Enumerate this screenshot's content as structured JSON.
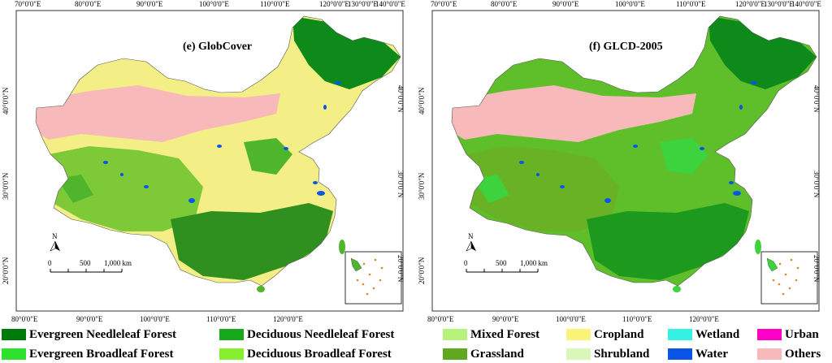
{
  "panels": [
    {
      "id": "e",
      "title": "(e) GlobCover",
      "top_lon_labels": [
        "70°0'0\"E",
        "80°0'0\"E",
        "90°0'0\"E",
        "100°0'0\"E",
        "110°0'0\"E",
        "120°0'0\"E",
        "130°0'0\"E",
        "140°0'0\"E"
      ],
      "bottom_lon_labels": [
        "80°0'0\"E",
        "90°0'0\"E",
        "100°0'0\"E",
        "110°0'0\"E",
        "120°0'0\"E"
      ],
      "lat_labels": [
        "40°0'0\"N",
        "30°0'0\"N",
        "20°0'0\"N"
      ],
      "scale_labels": [
        "0",
        "500",
        "1,000 km"
      ],
      "north_label": "N",
      "colors": {
        "base": "#f3ef86",
        "desert": "#f7b9b9",
        "forest_e": "#2f8f1f",
        "forest_d": "#4fb52c",
        "grass": "#7ec937",
        "needle": "#0d8a1a"
      }
    },
    {
      "id": "f",
      "title": "(f) GLCD-2005",
      "top_lon_labels": [
        "70°0'0\"E",
        "80°0'0\"E",
        "90°0'0\"E",
        "100°0'0\"E",
        "110°0'0\"E",
        "120°0'0\"E",
        "130°0'0\"E",
        "140°0'0\"E"
      ],
      "bottom_lon_labels": [
        "80°0'0\"E",
        "90°0'0\"E",
        "100°0'0\"E",
        "110°0'0\"E",
        "120°0'0\"E"
      ],
      "lat_labels": [
        "40°0'0\"N",
        "30°0'0\"N",
        "20°0'0\"N"
      ],
      "scale_labels": [
        "0",
        "500",
        "1,000 km"
      ],
      "north_label": "N",
      "colors": {
        "base": "#5fbf2a",
        "desert": "#f7b9b9",
        "forest_e": "#1d9a1d",
        "forest_d": "#3cd33c",
        "grass": "#69b226",
        "needle": "#0d8a1a"
      }
    }
  ],
  "legend": {
    "rows": [
      [
        {
          "label": "Evergreen Needleleaf Forest",
          "color": "#007a0a"
        },
        {
          "label": "Deciduous Needleleaf Forest",
          "color": "#19a81c"
        },
        {
          "label": "Mixed Forest",
          "color": "#b7f27a"
        },
        {
          "label": "Cropland",
          "color": "#fbf27a"
        },
        {
          "label": "Wetland",
          "color": "#33f2e3"
        },
        {
          "label": "Urban",
          "color": "#ff00c8"
        }
      ],
      [
        {
          "label": "Evergreen Broadleaf Forest",
          "color": "#2fe02f"
        },
        {
          "label": "Deciduous Broadleaf Forest",
          "color": "#86ef2f"
        },
        {
          "label": "Grassland",
          "color": "#5fa81f"
        },
        {
          "label": "Shrubland",
          "color": "#d9f7b9"
        },
        {
          "label": "Water",
          "color": "#0a55e8"
        },
        {
          "label": "Others",
          "color": "#f7b9b9"
        }
      ]
    ]
  }
}
